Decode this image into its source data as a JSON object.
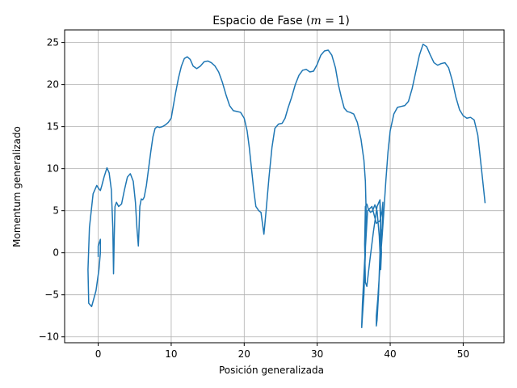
{
  "chart_data": {
    "type": "line",
    "title": "Espacio de Fase (",
    "title_math": "m",
    "title_math_rest": " = 1)",
    "xlabel": "Posición generalizada",
    "ylabel": "Momentum generalizado",
    "xlim": [
      -4.6,
      55.6
    ],
    "ylim": [
      -10.7,
      26.5
    ],
    "xticks": [
      0,
      10,
      20,
      30,
      40,
      50
    ],
    "yticks": [
      -10,
      -5,
      0,
      5,
      10,
      15,
      20,
      25
    ],
    "xtick_labels": [
      "0",
      "10",
      "20",
      "30",
      "40",
      "50"
    ],
    "ytick_labels": [
      "−10",
      "−5",
      "0",
      "5",
      "10",
      "15",
      "20",
      "25"
    ],
    "grid": true,
    "colors": {
      "line": "#1f77b4",
      "grid": "#b0b0b0",
      "axis": "#000000"
    },
    "series": [
      {
        "x": [
          0.0,
          0.0,
          0.3,
          0.3,
          0.1,
          -0.3,
          -0.9,
          -1.3,
          -1.4,
          -1.2,
          -0.7,
          -0.2,
          0.1,
          0.3,
          0.5,
          0.8,
          1.2,
          1.5,
          1.8,
          2.0,
          2.1,
          2.2,
          2.3,
          2.5,
          2.8,
          3.2,
          3.6,
          4.0,
          4.4,
          4.8,
          5.1,
          5.3,
          5.5,
          5.6,
          5.7,
          5.9,
          6.1,
          6.3,
          6.6,
          6.9,
          7.2,
          7.5,
          7.8,
          8.1,
          8.4,
          8.8,
          9.2,
          9.6,
          10.0,
          10.3,
          10.6,
          11.0,
          11.4,
          11.8,
          12.2,
          12.6,
          13.0,
          13.5,
          14.0,
          14.5,
          15.0,
          15.5,
          16.0,
          16.5,
          17.0,
          17.5,
          18.0,
          18.5,
          19.0,
          19.5,
          20.0,
          20.4,
          20.7,
          21.0,
          21.3,
          21.6,
          22.0,
          22.3,
          22.5,
          22.7,
          23.0,
          23.4,
          23.8,
          24.2,
          24.7,
          25.2,
          25.6,
          26.0,
          26.5,
          27.0,
          27.5,
          28.0,
          28.5,
          29.0,
          29.5,
          30.0,
          30.5,
          31.0,
          31.5,
          32.0,
          32.5,
          32.9,
          33.3,
          33.7,
          34.1,
          34.5,
          35.0,
          35.5,
          36.0,
          36.4,
          36.6,
          36.7,
          36.6,
          36.4,
          36.2,
          36.1,
          36.1,
          36.2,
          36.5,
          36.9,
          37.5,
          38.1,
          38.6,
          38.9,
          39.0,
          38.9,
          38.6,
          38.3,
          38.1,
          38.1,
          38.2,
          38.4,
          38.6,
          38.7,
          38.6,
          38.2,
          37.7,
          37.2,
          36.8,
          36.6,
          36.5,
          36.6,
          36.8,
          37.0,
          37.3,
          37.6,
          37.9,
          38.2,
          38.5,
          38.7,
          38.8,
          38.7,
          38.6,
          38.6,
          38.7,
          38.9,
          39.1,
          39.4,
          39.7,
          40.0,
          40.5,
          41.0,
          41.5,
          42.0,
          42.5,
          43.0,
          43.5,
          44.0,
          44.5,
          45.0,
          45.5,
          46.0,
          46.5,
          47.0,
          47.5,
          48.0,
          48.5,
          49.0,
          49.5,
          50.0,
          50.5,
          51.0,
          51.5,
          52.0,
          52.5,
          53.0
        ],
        "y": [
          -0.5,
          0.8,
          1.6,
          0.0,
          -2.0,
          -4.5,
          -6.4,
          -6.0,
          -2.0,
          3.0,
          7.0,
          8.0,
          7.6,
          7.4,
          8.0,
          9.0,
          10.1,
          9.5,
          7.5,
          3.0,
          -2.5,
          2.0,
          5.5,
          6.0,
          5.5,
          5.8,
          7.5,
          9.0,
          9.4,
          8.5,
          6.0,
          3.0,
          0.8,
          3.0,
          5.5,
          6.4,
          6.3,
          6.6,
          8.0,
          10.0,
          12.0,
          13.8,
          14.8,
          15.0,
          14.9,
          15.0,
          15.2,
          15.5,
          16.0,
          17.5,
          19.0,
          20.8,
          22.2,
          23.1,
          23.3,
          23.0,
          22.2,
          21.9,
          22.2,
          22.7,
          22.8,
          22.6,
          22.2,
          21.5,
          20.3,
          18.8,
          17.5,
          16.9,
          16.8,
          16.7,
          16.0,
          14.5,
          12.5,
          10.0,
          7.5,
          5.5,
          5.0,
          4.8,
          3.5,
          2.2,
          5.0,
          9.0,
          12.5,
          14.8,
          15.3,
          15.4,
          16.0,
          17.2,
          18.5,
          20.0,
          21.1,
          21.7,
          21.8,
          21.5,
          21.6,
          22.4,
          23.5,
          24.0,
          24.1,
          23.5,
          22.0,
          20.0,
          18.5,
          17.2,
          16.8,
          16.7,
          16.5,
          15.5,
          13.5,
          11.0,
          8.5,
          5.0,
          0.0,
          -5.0,
          -7.5,
          -8.9,
          -8.5,
          -6.0,
          -1.0,
          5.0,
          5.5,
          3.5,
          3.8,
          5.0,
          6.0,
          2.0,
          -1.5,
          -5.5,
          -7.5,
          -8.7,
          -8.0,
          -5.0,
          0.0,
          4.5,
          6.3,
          5.5,
          2.5,
          -1.0,
          -4.0,
          -3.5,
          1.0,
          5.5,
          5.8,
          5.2,
          4.8,
          5.0,
          5.7,
          5.0,
          2.0,
          -2.0,
          0.0,
          4.0,
          6.2,
          5.5,
          3.0,
          2.0,
          4.5,
          8.5,
          12.0,
          14.5,
          16.5,
          17.3,
          17.4,
          17.5,
          18.0,
          19.5,
          21.5,
          23.5,
          24.8,
          24.5,
          23.5,
          22.6,
          22.3,
          22.5,
          22.6,
          22.0,
          20.5,
          18.5,
          17.0,
          16.3,
          16.0,
          16.1,
          15.8,
          14.0,
          10.0,
          5.9
        ]
      }
    ]
  }
}
